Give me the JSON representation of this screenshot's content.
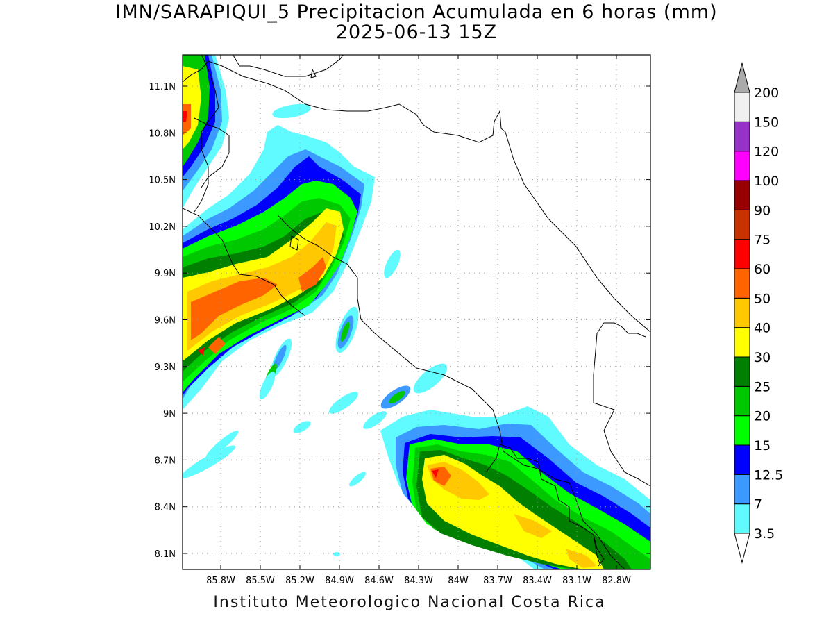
{
  "title": {
    "line1": "IMN/SARAPIQUI_5 Precipitacion Acumulada en 6 horas (mm)",
    "line2": "2025-06-13 15Z"
  },
  "footer": "Instituto Meteorologico Nacional Costa Rica",
  "map": {
    "lon_ticks": [
      "85.8W",
      "85.5W",
      "85.2W",
      "84.9W",
      "84.6W",
      "84.3W",
      "84W",
      "83.7W",
      "83.4W",
      "83.1W",
      "82.8W"
    ],
    "lat_ticks": [
      "11.1N",
      "10.8N",
      "10.5N",
      "10.2N",
      "9.9N",
      "9.6N",
      "9.3N",
      "9N",
      "8.7N",
      "8.4N",
      "8.1N"
    ],
    "lon_range": [
      -85.96,
      -82.96
    ],
    "lat_range": [
      8.0,
      11.3
    ],
    "grid": "dotted"
  },
  "colorbar": {
    "levels": [
      "3.5",
      "7",
      "12.5",
      "15",
      "20",
      "25",
      "30",
      "40",
      "50",
      "60",
      "75",
      "90",
      "100",
      "120",
      "150",
      "200"
    ],
    "colors": [
      "#5ffbff",
      "#3b99ff",
      "#0000ff",
      "#00ff00",
      "#00c800",
      "#007f00",
      "#ffff00",
      "#ffc800",
      "#ff6400",
      "#ff0000",
      "#c83200",
      "#960000",
      "#ff00ff",
      "#9632c8",
      "#f0f0f0",
      "#aaaaaa"
    ]
  }
}
